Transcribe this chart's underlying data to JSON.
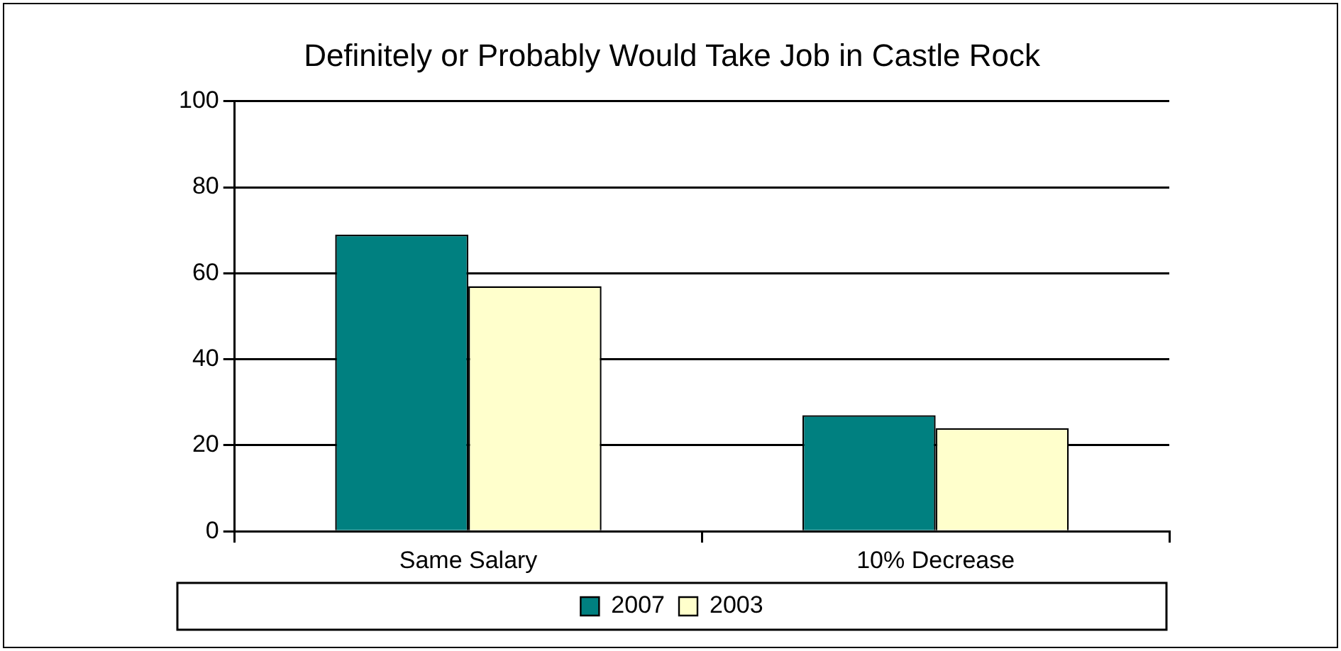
{
  "chart_data": {
    "type": "bar",
    "title": "Definitely or Probably Would Take Job in Castle Rock",
    "categories": [
      "Same Salary",
      "10% Decrease"
    ],
    "series": [
      {
        "name": "2007",
        "color": "#008080",
        "values": [
          69,
          27
        ]
      },
      {
        "name": "2003",
        "color": "#ffffcc",
        "values": [
          57,
          24
        ]
      }
    ],
    "ylim": [
      0,
      100
    ],
    "yticks": [
      0,
      20,
      40,
      60,
      80,
      100
    ],
    "grid": "y",
    "legend": "bottom"
  }
}
